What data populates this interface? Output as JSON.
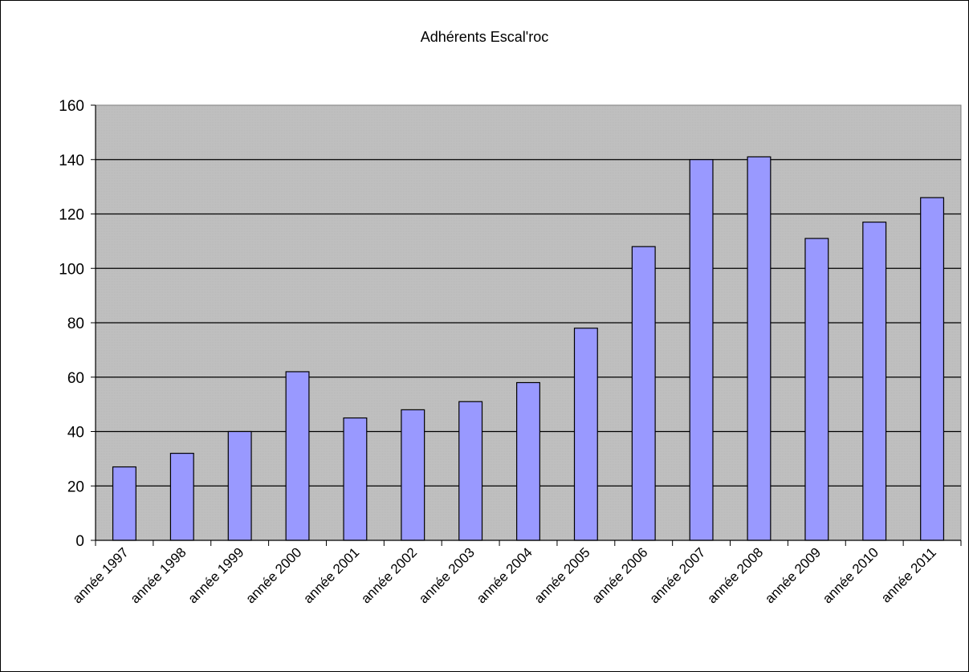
{
  "chart_data": {
    "type": "bar",
    "title": "Adhérents Escal'roc",
    "xlabel": "",
    "ylabel": "",
    "categories": [
      "année 1997",
      "année 1998",
      "année 1999",
      "année 2000",
      "année 2001",
      "année 2002",
      "année 2003",
      "année 2004",
      "année 2005",
      "année 2006",
      "année 2007",
      "année 2008",
      "année 2009",
      "année 2010",
      "année 2011"
    ],
    "values": [
      27,
      32,
      40,
      62,
      45,
      48,
      51,
      58,
      78,
      108,
      140,
      141,
      111,
      117,
      126
    ],
    "ylim": [
      0,
      160
    ],
    "yticks": [
      0,
      20,
      40,
      60,
      80,
      100,
      120,
      140,
      160
    ],
    "grid": true,
    "legend": "none",
    "colors": {
      "bar_fill": "#9999ff",
      "bar_stroke": "#000000",
      "plot_background": "#c0c0c0",
      "gridline": "#000000"
    }
  }
}
